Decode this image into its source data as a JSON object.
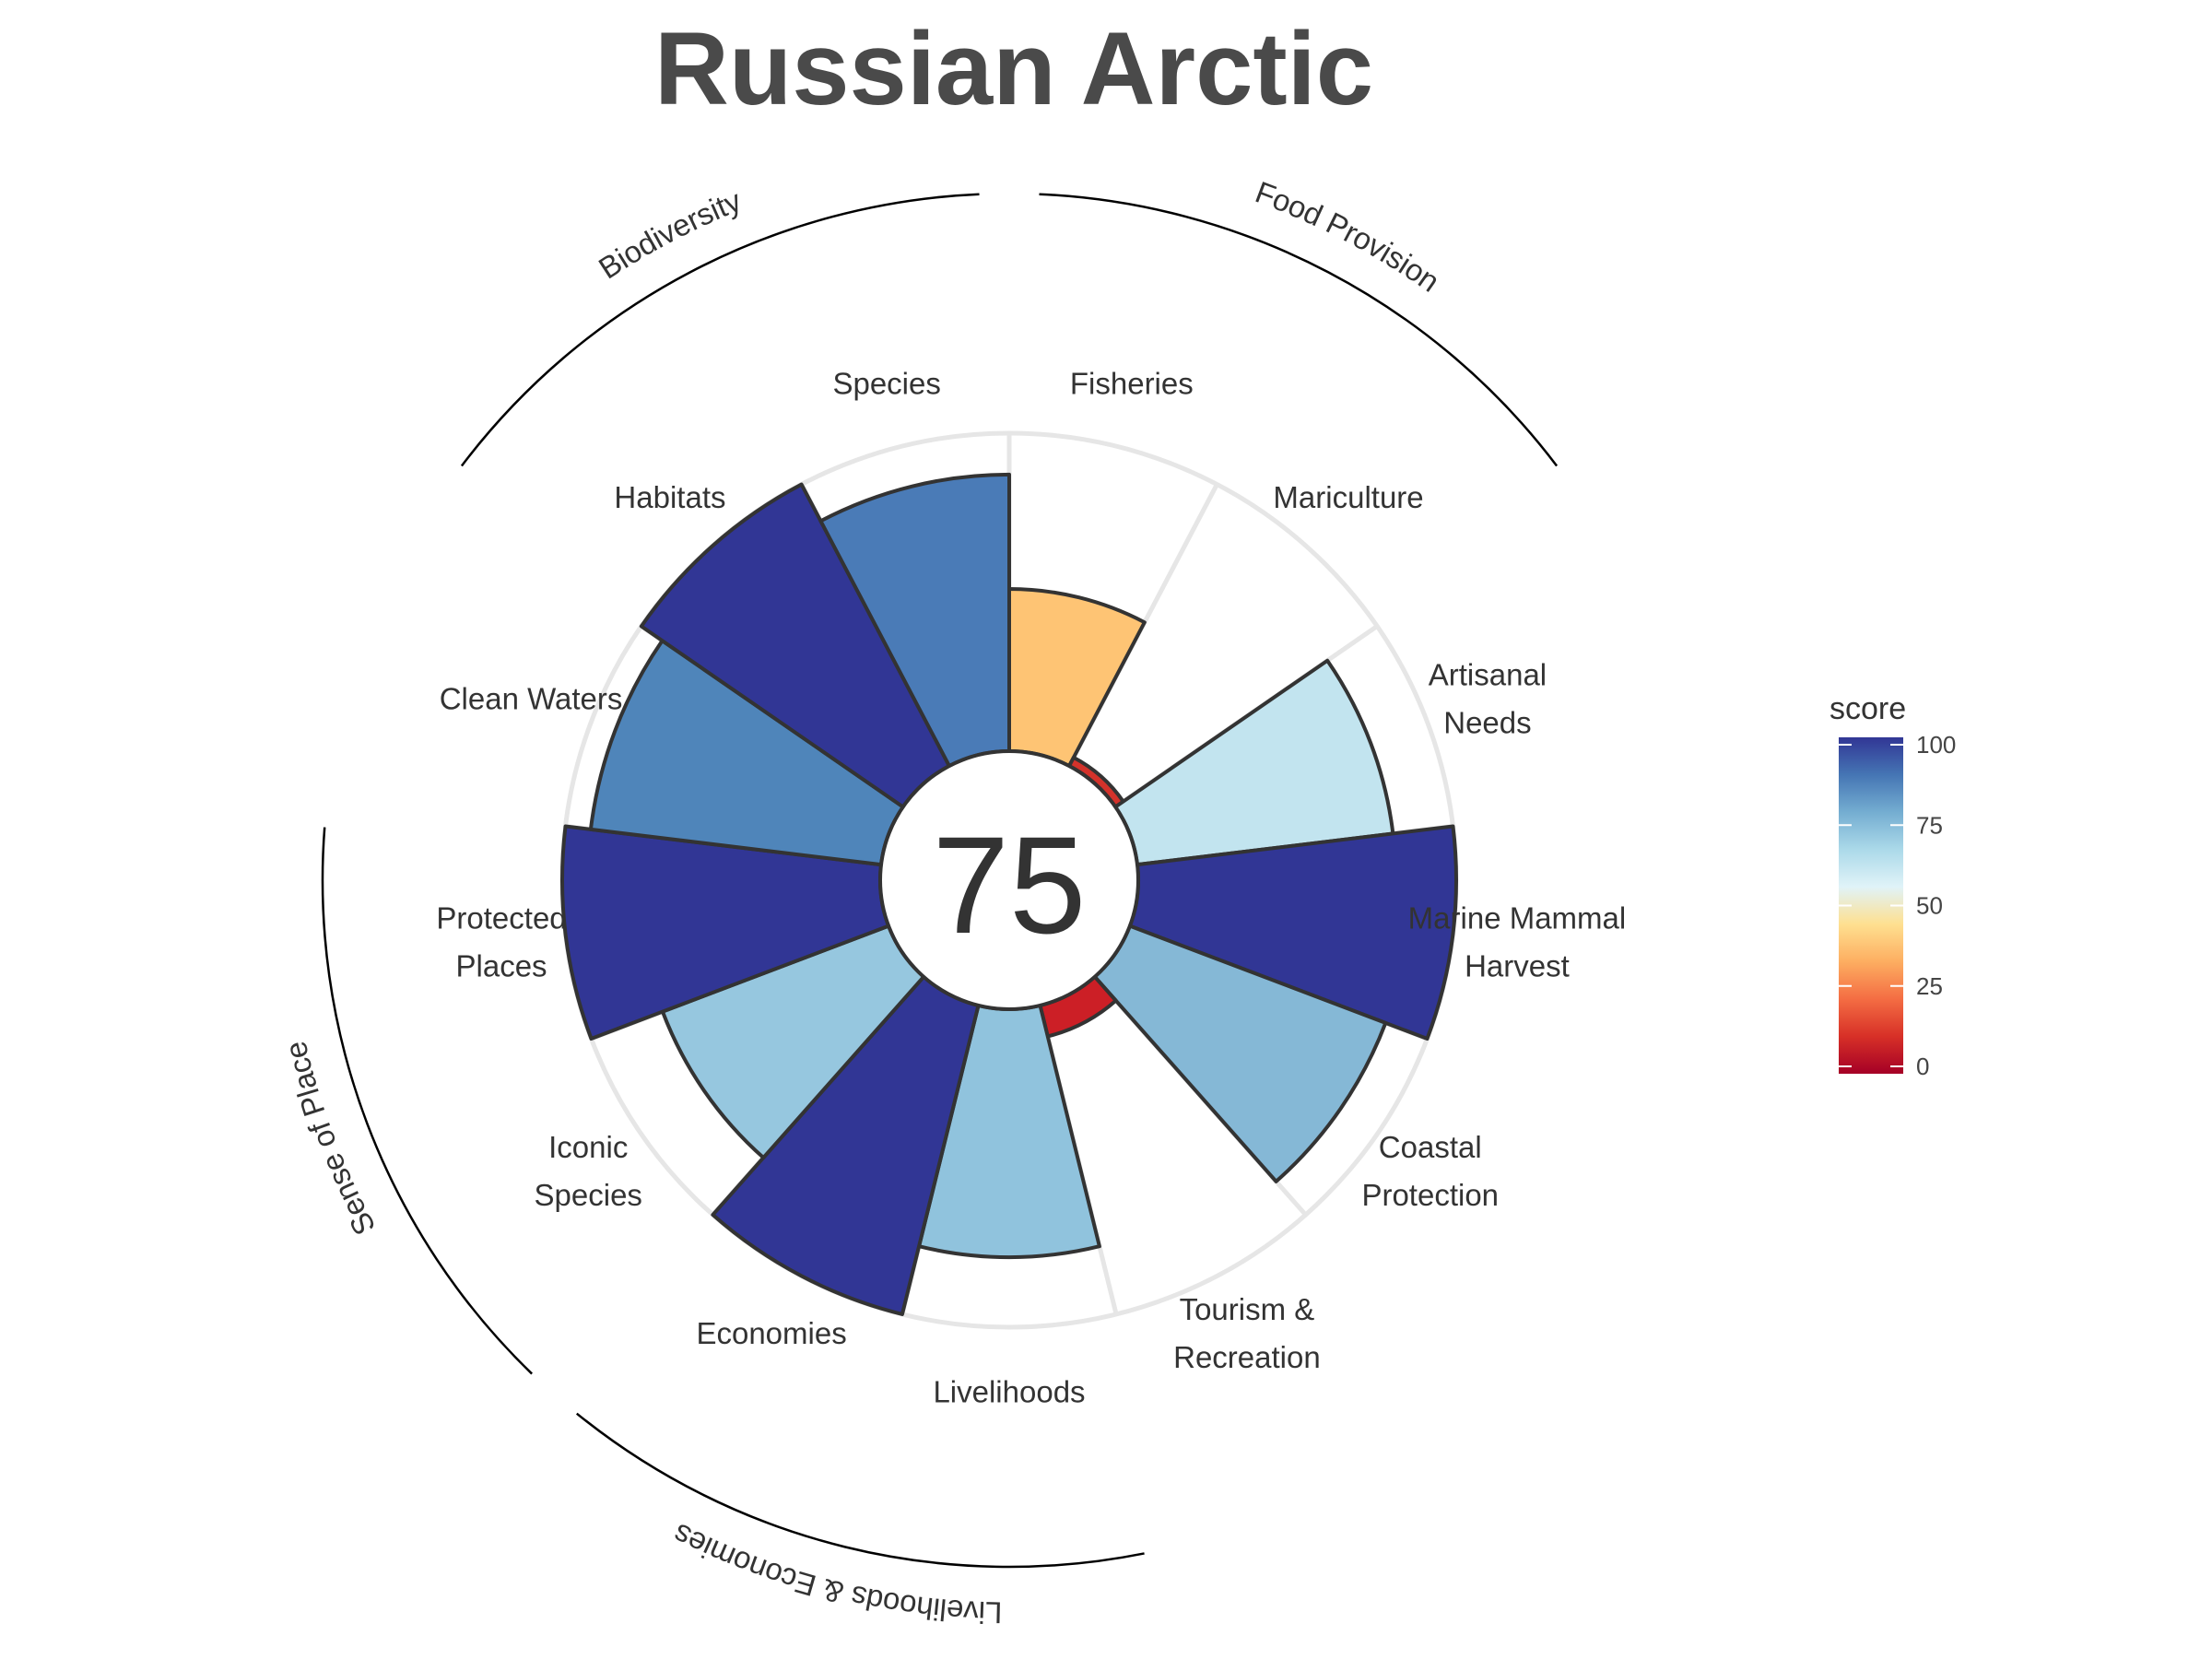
{
  "chart_data": {
    "type": "polar-bar",
    "title": "Russian Arctic",
    "center_score": "75",
    "rlim": [
      0,
      100
    ],
    "goals": [
      {
        "label": [
          "Fisheries"
        ],
        "score": 51,
        "color": "#fec474"
      },
      {
        "label": [
          "Mariculture"
        ],
        "score": 3,
        "color": "#d3322b"
      },
      {
        "label": [
          "Artisanal",
          "Needs"
        ],
        "score": 81,
        "color": "#c2e4ef"
      },
      {
        "label": [
          "Marine Mammal",
          "Harvest"
        ],
        "score": 100,
        "color": "#313695"
      },
      {
        "label": [
          "Coastal",
          "Protection"
        ],
        "score": 86,
        "color": "#85b8d6"
      },
      {
        "label": [
          "Tourism &",
          "Recreation"
        ],
        "score": 10,
        "color": "#cc1f26"
      },
      {
        "label": [
          "Livelihoods"
        ],
        "score": 78,
        "color": "#90c3dd"
      },
      {
        "label": [
          "Economies"
        ],
        "score": 100,
        "color": "#313695"
      },
      {
        "label": [
          "Iconic",
          "Species"
        ],
        "score": 76,
        "color": "#96c7df"
      },
      {
        "label": [
          "Protected",
          "Places"
        ],
        "score": 100,
        "color": "#313695"
      },
      {
        "label": [
          "Clean Waters"
        ],
        "score": 92,
        "color": "#4f85ba"
      },
      {
        "label": [
          "Habitats"
        ],
        "score": 100,
        "color": "#313695"
      },
      {
        "label": [
          "Species"
        ],
        "score": 87,
        "color": "#4a7bb7"
      }
    ],
    "groups": [
      {
        "name": "Food Provision",
        "first": 0,
        "last": 1
      },
      {
        "name": "Biodiversity",
        "first": 11,
        "last": 12
      },
      {
        "name": "Sense of Place",
        "first": 8,
        "last": 9
      },
      {
        "name": "Livelihoods & Economies",
        "first": 6,
        "last": 7
      }
    ],
    "legend": {
      "title": "score",
      "ticks": [
        "0",
        "25",
        "50",
        "75",
        "100"
      ],
      "colors": [
        "#a50026",
        "#d73027",
        "#f46d43",
        "#fdae61",
        "#fee090",
        "#e0f3f8",
        "#abd9e9",
        "#74add1",
        "#4575b4",
        "#313695"
      ]
    }
  }
}
